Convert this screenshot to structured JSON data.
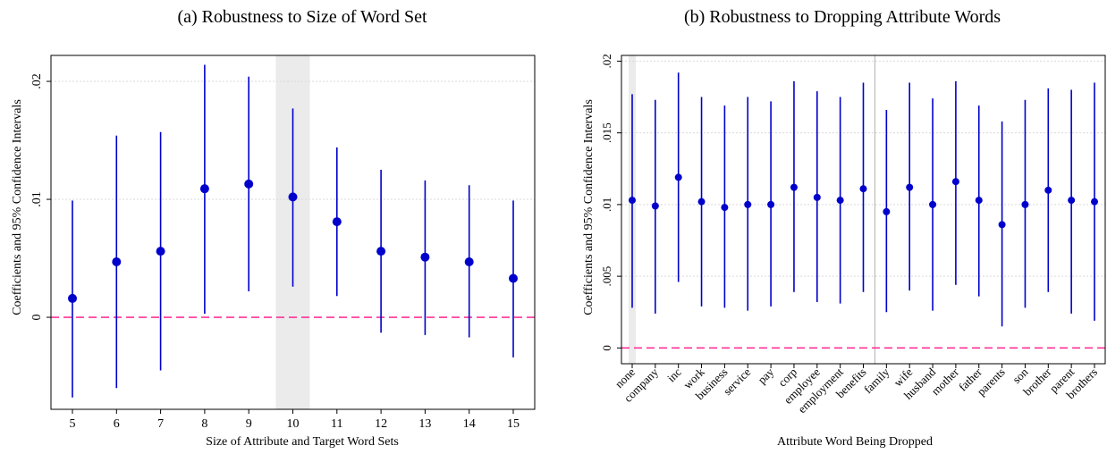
{
  "colors": {
    "marker": "#0000cc",
    "zero_line": "#ff3399",
    "highlight": "#ebebeb",
    "grid": "#d9d9d9",
    "separator": "#b0b0b0"
  },
  "chart_data": [
    {
      "type": "scatter",
      "title": "(a) Robustness to Size of Word Set",
      "xlabel": "Size of Attribute and Target Word Sets",
      "ylabel": "Coefficients and 95% Confidence Intervals",
      "categories": [
        "5",
        "6",
        "7",
        "8",
        "9",
        "10",
        "11",
        "12",
        "13",
        "14",
        "15"
      ],
      "series": [
        {
          "values": [
            0.0016,
            0.0047,
            0.0056,
            0.0109,
            0.0113,
            0.0102,
            0.0081,
            0.0056,
            0.0051,
            0.0047,
            0.0033
          ],
          "ci_low": [
            -0.0068,
            -0.006,
            -0.0045,
            0.0003,
            0.0022,
            0.0026,
            0.0018,
            -0.0013,
            -0.0015,
            -0.0017,
            -0.0034
          ],
          "ci_high": [
            0.0099,
            0.0154,
            0.0157,
            0.0214,
            0.0204,
            0.0177,
            0.0144,
            0.0125,
            0.0116,
            0.0112,
            0.0099
          ]
        }
      ],
      "yticks": [
        0,
        0.01,
        0.02
      ],
      "ytick_labels": [
        "0",
        ".01",
        ".02"
      ],
      "ylim": [
        -0.0078,
        0.0222
      ],
      "highlight_category": "10",
      "reference_line": 0,
      "grid": true
    },
    {
      "type": "scatter",
      "title": "(b) Robustness to Dropping Attribute Words",
      "xlabel": "Attribute Word Being Dropped",
      "ylabel": "Coefficients and 95% Confidence Intervals",
      "categories": [
        "none",
        "company",
        "inc",
        "work",
        "business",
        "service",
        "pay",
        "corp",
        "employee",
        "employment",
        "benefits",
        "family",
        "wife",
        "husband",
        "mother",
        "father",
        "parents",
        "son",
        "brother",
        "parent",
        "brothers"
      ],
      "series": [
        {
          "values": [
            0.0103,
            0.0099,
            0.0119,
            0.0102,
            0.0098,
            0.01,
            0.01,
            0.0112,
            0.0105,
            0.0103,
            0.0111,
            0.0095,
            0.0112,
            0.01,
            0.0116,
            0.0103,
            0.0086,
            0.01,
            0.011,
            0.0103,
            0.0102
          ],
          "ci_low": [
            0.0028,
            0.0024,
            0.0046,
            0.0029,
            0.0028,
            0.0026,
            0.0029,
            0.0039,
            0.0032,
            0.0031,
            0.0039,
            0.0025,
            0.004,
            0.0026,
            0.0044,
            0.0036,
            0.0015,
            0.0028,
            0.0039,
            0.0024,
            0.0019
          ],
          "ci_high": [
            0.0177,
            0.0173,
            0.0192,
            0.0175,
            0.0169,
            0.0175,
            0.0172,
            0.0186,
            0.0179,
            0.0175,
            0.0185,
            0.0166,
            0.0185,
            0.0174,
            0.0186,
            0.0169,
            0.0158,
            0.0173,
            0.0181,
            0.018,
            0.0185
          ]
        }
      ],
      "yticks": [
        0,
        0.005,
        0.01,
        0.015,
        0.02
      ],
      "ytick_labels": [
        "0",
        ".005",
        ".01",
        ".015",
        ".02"
      ],
      "ylim": [
        -0.0011,
        0.0204
      ],
      "highlight_category": "none",
      "separator_after": "benefits",
      "reference_line": 0,
      "grid": true
    }
  ]
}
